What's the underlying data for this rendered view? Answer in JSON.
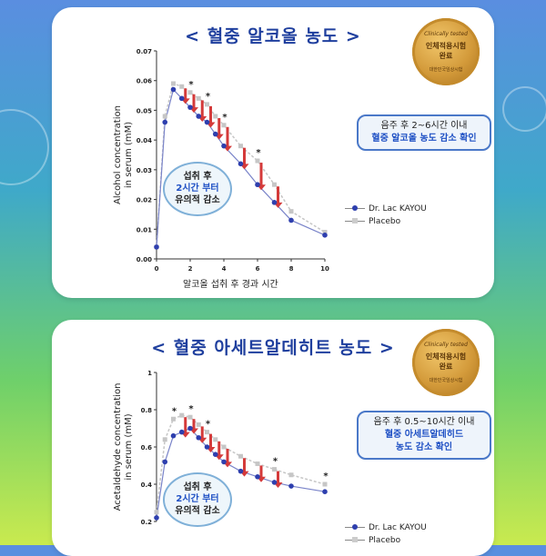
{
  "colors": {
    "treatment": "#2e3fae",
    "placebo": "#c6c6c6",
    "arrow": "#d43a3a",
    "title": "#1f3f9e"
  },
  "badge": {
    "line1": "Clinically tested",
    "line2": "인체적용시험",
    "line3": "완료",
    "line4": "대한민국임상시험"
  },
  "chart_data": [
    {
      "type": "line",
      "title": "< 혈중 알코올 농도 >",
      "xlabel": "알코올 섭취 후 경과 시간",
      "ylabel": "Alcohol concentration in serum (mM)",
      "ylim": [
        0,
        0.07
      ],
      "xlim": [
        0,
        10
      ],
      "yticks": [
        "0.00",
        "0.01",
        "0.02",
        "0.03",
        "0.04",
        "0.05",
        "0.06",
        "0.07"
      ],
      "xticks": [
        "0",
        "2",
        "4",
        "6",
        "8",
        "10"
      ],
      "series": [
        {
          "name": "Dr. Lac KAYOU",
          "x": [
            0,
            0.5,
            1,
            1.5,
            2,
            2.5,
            3,
            3.5,
            4,
            5,
            6,
            7,
            8,
            10
          ],
          "values": [
            0.004,
            0.046,
            0.057,
            0.054,
            0.051,
            0.048,
            0.046,
            0.042,
            0.038,
            0.032,
            0.025,
            0.019,
            0.013,
            0.008
          ]
        },
        {
          "name": "Placebo",
          "x": [
            0,
            0.5,
            1,
            1.5,
            2,
            2.5,
            3,
            3.5,
            4,
            5,
            6,
            7,
            8,
            10
          ],
          "values": [
            0.004,
            0.048,
            0.059,
            0.058,
            0.056,
            0.054,
            0.052,
            0.048,
            0.045,
            0.038,
            0.033,
            0.025,
            0.016,
            0.009
          ]
        }
      ],
      "significance": [
        {
          "x": 2,
          "label": "*"
        },
        {
          "x": 3,
          "label": "*"
        },
        {
          "x": 4,
          "label": "*"
        },
        {
          "x": 6,
          "label": "*"
        }
      ],
      "legend_position": "right",
      "callout": {
        "line1": "음주 후 2~6시간 이내",
        "line2": "혈중 알코올 농도 감소 확인"
      },
      "bubble": {
        "line1": "섭취 후",
        "line2": "2시간 부터",
        "line3": "유의적 감소"
      }
    },
    {
      "type": "line",
      "title": "< 혈중 아세트알데히트 농도 >",
      "xlabel": "",
      "ylabel": "Acetaldehyde concentration in serum (mM)",
      "ylim": [
        0.2,
        1.0
      ],
      "xlim": [
        0,
        10
      ],
      "yticks": [
        "0.2",
        "0.4",
        "0.6",
        "0.8",
        "1"
      ],
      "series": [
        {
          "name": "Dr. Lac KAYOU",
          "x": [
            0,
            0.5,
            1,
            1.5,
            2,
            2.5,
            3,
            3.5,
            4,
            5,
            6,
            7,
            8,
            10
          ],
          "values": [
            0.22,
            0.52,
            0.66,
            0.68,
            0.7,
            0.65,
            0.6,
            0.56,
            0.52,
            0.47,
            0.44,
            0.41,
            0.39,
            0.36
          ]
        },
        {
          "name": "Placebo",
          "x": [
            0,
            0.5,
            1,
            1.5,
            2,
            2.5,
            3,
            3.5,
            4,
            5,
            6,
            7,
            8,
            10
          ],
          "values": [
            0.25,
            0.64,
            0.75,
            0.77,
            0.76,
            0.72,
            0.68,
            0.64,
            0.6,
            0.55,
            0.51,
            0.48,
            0.45,
            0.4
          ]
        }
      ],
      "significance": [
        {
          "x": 1,
          "label": "*"
        },
        {
          "x": 2,
          "label": "*"
        },
        {
          "x": 3,
          "label": "*"
        },
        {
          "x": 7,
          "label": "*"
        },
        {
          "x": 10,
          "label": "*"
        }
      ],
      "legend_position": "right",
      "callout": {
        "line1": "음주 후 0.5~10시간 이내",
        "line2": "혈중 아세트알데히드",
        "line3": "농도 감소 확인"
      },
      "bubble": {
        "line1": "섭취 후",
        "line2": "2시간 부터",
        "line3": "유의적 감소"
      }
    }
  ]
}
